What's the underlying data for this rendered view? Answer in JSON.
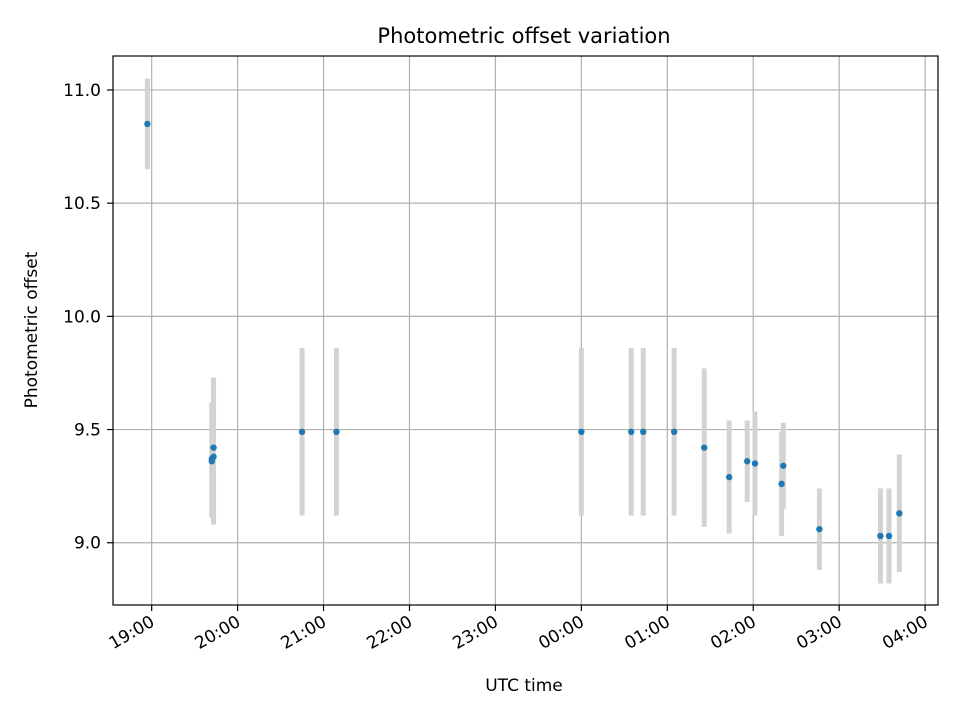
{
  "chart_data": {
    "type": "scatter",
    "title": "Photometric offset variation",
    "xlabel": "UTC time",
    "ylabel": "Photometric offset",
    "grid": true,
    "legend": "none",
    "colors": {
      "point": "#1f77b4",
      "errorbar": "#d3d3d3",
      "grid": "#b0b0b0"
    },
    "x_axis": {
      "unit": "UTC time, hours since 00:00 of first night",
      "ticks": [
        {
          "value": 19,
          "label": "19:00"
        },
        {
          "value": 20,
          "label": "20:00"
        },
        {
          "value": 21,
          "label": "21:00"
        },
        {
          "value": 22,
          "label": "22:00"
        },
        {
          "value": 23,
          "label": "23:00"
        },
        {
          "value": 24,
          "label": "00:00"
        },
        {
          "value": 25,
          "label": "01:00"
        },
        {
          "value": 26,
          "label": "02:00"
        },
        {
          "value": 27,
          "label": "03:00"
        },
        {
          "value": 28,
          "label": "04:00"
        }
      ],
      "range": [
        18.55,
        28.15
      ]
    },
    "y_axis": {
      "ticks": [
        {
          "value": 9.0,
          "label": "9.0"
        },
        {
          "value": 9.5,
          "label": "9.5"
        },
        {
          "value": 10.0,
          "label": "10.0"
        },
        {
          "value": 10.5,
          "label": "10.5"
        },
        {
          "value": 11.0,
          "label": "11.0"
        }
      ],
      "range": [
        8.725,
        11.15
      ]
    },
    "points": [
      {
        "t": "18:57",
        "x": 18.95,
        "y": 10.85,
        "err": 0.2
      },
      {
        "t": "19:42",
        "x": 19.7,
        "y": 9.36,
        "err": 0.25
      },
      {
        "t": "19:42",
        "x": 19.7,
        "y": 9.37,
        "err": 0.25
      },
      {
        "t": "19:43",
        "x": 19.72,
        "y": 9.38,
        "err": 0.3
      },
      {
        "t": "19:43",
        "x": 19.72,
        "y": 9.42,
        "err": 0.31
      },
      {
        "t": "20:45",
        "x": 20.75,
        "y": 9.49,
        "err": 0.37
      },
      {
        "t": "21:09",
        "x": 21.15,
        "y": 9.49,
        "err": 0.37
      },
      {
        "t": "00:00",
        "x": 24.0,
        "y": 9.49,
        "err": 0.37
      },
      {
        "t": "00:35",
        "x": 24.58,
        "y": 9.49,
        "err": 0.37
      },
      {
        "t": "00:43",
        "x": 24.72,
        "y": 9.49,
        "err": 0.37
      },
      {
        "t": "01:05",
        "x": 25.08,
        "y": 9.49,
        "err": 0.37
      },
      {
        "t": "01:26",
        "x": 25.43,
        "y": 9.42,
        "err": 0.35
      },
      {
        "t": "01:43",
        "x": 25.72,
        "y": 9.29,
        "err": 0.25
      },
      {
        "t": "01:56",
        "x": 25.93,
        "y": 9.36,
        "err": 0.18
      },
      {
        "t": "02:01",
        "x": 26.02,
        "y": 9.35,
        "err": 0.23
      },
      {
        "t": "02:20",
        "x": 26.33,
        "y": 9.26,
        "err": 0.23
      },
      {
        "t": "02:21",
        "x": 26.35,
        "y": 9.34,
        "err": 0.19
      },
      {
        "t": "02:46",
        "x": 26.77,
        "y": 9.06,
        "err": 0.18
      },
      {
        "t": "03:29",
        "x": 27.48,
        "y": 9.03,
        "err": 0.21
      },
      {
        "t": "03:35",
        "x": 27.58,
        "y": 9.03,
        "err": 0.21
      },
      {
        "t": "03:41",
        "x": 27.7,
        "y": 9.13,
        "err": 0.26
      }
    ]
  }
}
